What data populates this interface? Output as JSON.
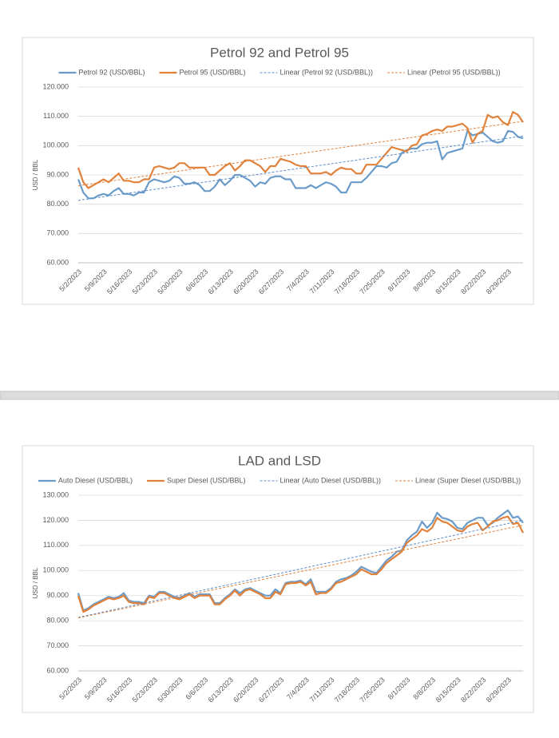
{
  "chart_data": [
    {
      "type": "line",
      "title": "Petrol 92 and Petrol 95",
      "y_label": "USD / BBL",
      "grid": true,
      "legend": "top",
      "categories": [
        "5/2/2023",
        null,
        null,
        null,
        null,
        "5/9/2023",
        null,
        null,
        null,
        null,
        "5/16/2023",
        null,
        null,
        null,
        null,
        "5/23/2023",
        null,
        null,
        null,
        null,
        "5/30/2023",
        null,
        null,
        null,
        null,
        "6/6/2023",
        null,
        null,
        null,
        null,
        "6/13/2023",
        null,
        null,
        null,
        null,
        "6/20/2023",
        null,
        null,
        null,
        null,
        "6/27/2023",
        null,
        null,
        null,
        null,
        "7/4/2023",
        null,
        null,
        null,
        null,
        "7/11/2023",
        null,
        null,
        null,
        null,
        "7/18/2023",
        null,
        null,
        null,
        null,
        "7/25/2023",
        null,
        null,
        null,
        null,
        "8/1/2023",
        null,
        null,
        null,
        null,
        "8/8/2023",
        null,
        null,
        null,
        null,
        "8/15/2023",
        null,
        null,
        null,
        null,
        "8/22/2023",
        null,
        null,
        null,
        null,
        "8/29/2023",
        null,
        null,
        null
      ],
      "ylim": [
        60,
        120
      ],
      "yticks": [
        {
          "value": 60,
          "label": "60.000"
        },
        {
          "value": 70,
          "label": "70.000"
        },
        {
          "value": 80,
          "label": "80.000"
        },
        {
          "value": 90,
          "label": "90.000"
        },
        {
          "value": 100,
          "label": "100.000"
        },
        {
          "value": 110,
          "label": "110.000"
        },
        {
          "value": 120,
          "label": "120.000"
        }
      ],
      "series": [
        {
          "name": "Petrol 92 (USD/BBL)",
          "color": "#6b9bc9",
          "style": "solid",
          "values": [
            88.5,
            84,
            82,
            82,
            83,
            83.5,
            83,
            84.5,
            85.5,
            83.5,
            83.5,
            83,
            84,
            84,
            87.5,
            88.5,
            88,
            87.5,
            88,
            89.5,
            89,
            87,
            87,
            87.5,
            86.5,
            84.5,
            84.5,
            86,
            88.5,
            86.5,
            88,
            90,
            90,
            89,
            88,
            86,
            87.5,
            87,
            89,
            89.5,
            89.5,
            88.5,
            88.5,
            85.5,
            85.5,
            85.5,
            86.5,
            85.5,
            86.5,
            87.5,
            87,
            86,
            84,
            84,
            87.5,
            87.5,
            87.5,
            89,
            91,
            93,
            93,
            92.5,
            94,
            94.5,
            97.5,
            98.5,
            99,
            99,
            100.5,
            101,
            101,
            101.5,
            95.3,
            97.5,
            98,
            98.5,
            99,
            105,
            103.5,
            104,
            104.5,
            103,
            101.5,
            101,
            101.5,
            105,
            104.7,
            103,
            102.5
          ]
        },
        {
          "name": "Petrol 95 (USD/BBL)",
          "color": "#e0823c",
          "style": "solid",
          "values": [
            92.5,
            87.5,
            85.5,
            86.5,
            87.5,
            88.5,
            87.5,
            89,
            90.5,
            88,
            88,
            87.5,
            87.5,
            88.5,
            88.5,
            92.5,
            93,
            92.5,
            92,
            92.5,
            94,
            94,
            92.5,
            92.5,
            92.5,
            92.5,
            90,
            90,
            91.5,
            93,
            94,
            91.5,
            93,
            95,
            95,
            94,
            93,
            91,
            93,
            93,
            95.5,
            95,
            94.5,
            93.5,
            93,
            93,
            90.5,
            90.5,
            90.5,
            91,
            90,
            91.5,
            92.5,
            92,
            92,
            90.5,
            90.5,
            93.5,
            93.5,
            93.5,
            95.5,
            97.5,
            99.5,
            99,
            98.5,
            98,
            100,
            100.5,
            103.5,
            104,
            105,
            105.5,
            105,
            106.5,
            106.5,
            107,
            107.5,
            106,
            101,
            104,
            105,
            110.5,
            109.5,
            110,
            108,
            107,
            111.5,
            110.5,
            108
          ]
        },
        {
          "name": "Linear (Petrol 92 (USD/BBL))",
          "color": "#5b8ec9",
          "style": "dashed",
          "values": [
            81.3,
            81.55,
            81.8,
            82.05,
            82.3,
            82.55,
            82.8,
            83.05,
            83.3,
            83.55,
            83.8,
            84.05,
            84.3,
            84.55,
            84.8,
            85.05,
            85.3,
            85.55,
            85.8,
            86.05,
            86.3,
            86.55,
            86.8,
            87.05,
            87.3,
            87.55,
            87.8,
            88.05,
            88.3,
            88.55,
            88.8,
            89.05,
            89.3,
            89.55,
            89.8,
            90.05,
            90.3,
            90.55,
            90.8,
            91.05,
            91.3,
            91.55,
            91.8,
            92.05,
            92.3,
            92.55,
            92.8,
            93.05,
            93.3,
            93.55,
            93.8,
            94.05,
            94.3,
            94.55,
            94.8,
            95.05,
            95.3,
            95.55,
            95.8,
            96.05,
            96.3,
            96.55,
            96.8,
            97.05,
            97.3,
            97.55,
            97.8,
            98.05,
            98.3,
            98.55,
            98.8,
            99.05,
            99.3,
            99.55,
            99.8,
            100.05,
            100.3,
            100.55,
            100.8,
            101.05,
            101.3,
            101.55,
            101.8,
            102.05,
            102.3,
            102.55,
            102.8,
            103.05,
            103.3
          ]
        },
        {
          "name": "Linear (Petrol 95 (USD/BBL))",
          "color": "#e0823c",
          "style": "dashed",
          "values": [
            86.3,
            86.55,
            86.8,
            87.05,
            87.3,
            87.55,
            87.8,
            88.05,
            88.3,
            88.55,
            88.8,
            89.05,
            89.3,
            89.55,
            89.8,
            90.05,
            90.3,
            90.55,
            90.8,
            91.05,
            91.3,
            91.55,
            91.8,
            92.05,
            92.3,
            92.55,
            92.8,
            93.05,
            93.3,
            93.55,
            93.8,
            94.05,
            94.3,
            94.55,
            94.8,
            95.05,
            95.3,
            95.55,
            95.8,
            96.05,
            96.3,
            96.55,
            96.8,
            97.05,
            97.3,
            97.55,
            97.8,
            98.05,
            98.3,
            98.55,
            98.8,
            99.05,
            99.3,
            99.55,
            99.8,
            100.05,
            100.3,
            100.55,
            100.8,
            101.05,
            101.3,
            101.55,
            101.8,
            102.05,
            102.3,
            102.55,
            102.8,
            103.05,
            103.3,
            103.55,
            103.8,
            104.05,
            104.3,
            104.55,
            104.8,
            105.05,
            105.3,
            105.55,
            105.8,
            106.05,
            106.3,
            106.55,
            106.8,
            107.05,
            107.3,
            107.55,
            107.8,
            108.05,
            108.3
          ]
        }
      ]
    },
    {
      "type": "line",
      "title": "LAD and LSD",
      "y_label": "USD / BBL",
      "grid": true,
      "legend": "top",
      "categories": [
        "5/2/2023",
        null,
        null,
        null,
        null,
        "5/9/2023",
        null,
        null,
        null,
        null,
        "5/16/2023",
        null,
        null,
        null,
        null,
        "5/23/2023",
        null,
        null,
        null,
        null,
        "5/30/2023",
        null,
        null,
        null,
        null,
        "6/6/2023",
        null,
        null,
        null,
        null,
        "6/13/2023",
        null,
        null,
        null,
        null,
        "6/20/2023",
        null,
        null,
        null,
        null,
        "6/27/2023",
        null,
        null,
        null,
        null,
        "7/4/2023",
        null,
        null,
        null,
        null,
        "7/11/2023",
        null,
        null,
        null,
        null,
        "7/18/2023",
        null,
        null,
        null,
        null,
        "7/25/2023",
        null,
        null,
        null,
        null,
        "8/1/2023",
        null,
        null,
        null,
        null,
        "8/8/2023",
        null,
        null,
        null,
        null,
        "8/15/2023",
        null,
        null,
        null,
        null,
        "8/22/2023",
        null,
        null,
        null,
        null,
        "8/29/2023",
        null,
        null,
        null
      ],
      "ylim": [
        60,
        130
      ],
      "yticks": [
        {
          "value": 60,
          "label": "60.000"
        },
        {
          "value": 70,
          "label": "70.000"
        },
        {
          "value": 80,
          "label": "80.000"
        },
        {
          "value": 90,
          "label": "90.000"
        },
        {
          "value": 100,
          "label": "100.000"
        },
        {
          "value": 110,
          "label": "110.000"
        },
        {
          "value": 120,
          "label": "120.000"
        },
        {
          "value": 130,
          "label": "130.000"
        }
      ],
      "series": [
        {
          "name": "Auto Diesel (USD/BBL)",
          "color": "#6b9bc9",
          "style": "solid",
          "values": [
            91,
            84,
            85,
            86.5,
            87.5,
            88.5,
            89.5,
            89,
            89.5,
            91,
            88,
            87.5,
            87.5,
            87,
            90,
            89.5,
            91.5,
            91.5,
            90.5,
            89.5,
            89,
            90,
            91,
            89.5,
            90.5,
            90.5,
            90.5,
            87,
            87,
            89,
            90.5,
            92.5,
            91,
            92.5,
            93,
            92,
            91,
            90,
            90,
            92.5,
            91,
            95,
            95.5,
            95.5,
            96,
            94.5,
            96.5,
            91.5,
            91.5,
            91.5,
            93,
            95.5,
            96.5,
            97,
            98,
            99.5,
            101.5,
            100.5,
            99.5,
            99,
            101.5,
            104,
            105.5,
            107.5,
            108,
            112,
            114,
            115.5,
            119.5,
            117,
            119,
            123,
            121,
            120.5,
            119.5,
            117,
            116.5,
            119,
            120,
            121,
            121,
            118,
            119,
            121,
            122.5,
            124,
            121,
            121.5,
            119
          ]
        },
        {
          "name": "Super Diesel (USD/BBL)",
          "color": "#e0823c",
          "style": "solid",
          "values": [
            90,
            83.5,
            84.5,
            86,
            87,
            88,
            89,
            88.5,
            89,
            90,
            87.5,
            87,
            87,
            86.5,
            89.5,
            89,
            91,
            91,
            90,
            89,
            88.5,
            89.5,
            90.5,
            89,
            90,
            90,
            90,
            86.5,
            86.5,
            88.5,
            90,
            92,
            90,
            92,
            92.5,
            91.5,
            90.5,
            89,
            89,
            91.5,
            90.5,
            94.5,
            95,
            95,
            95.5,
            94,
            95.5,
            90.5,
            91,
            91,
            92.5,
            95,
            95.5,
            96.5,
            97.5,
            98.5,
            100.5,
            99.5,
            98.5,
            98.5,
            100.5,
            103,
            104.5,
            106,
            107.5,
            111,
            112.5,
            114,
            116.5,
            115.5,
            117,
            121,
            119.5,
            119,
            117.5,
            116,
            115.5,
            117.5,
            118.5,
            119,
            116,
            117.5,
            119.5,
            120,
            121,
            121.5,
            118.5,
            119,
            115
          ]
        },
        {
          "name": "Linear (Auto Diesel (USD/BBL))",
          "color": "#5b8ec9",
          "style": "dashed",
          "values": [
            81.3,
            81.74,
            82.18,
            82.62,
            83.06,
            83.5,
            83.94,
            84.38,
            84.82,
            85.26,
            85.7,
            86.14,
            86.58,
            87.02,
            87.46,
            87.9,
            88.34,
            88.78,
            89.22,
            89.66,
            90.1,
            90.54,
            90.98,
            91.42,
            91.86,
            92.3,
            92.74,
            93.18,
            93.62,
            94.06,
            94.5,
            94.94,
            95.38,
            95.82,
            96.26,
            96.7,
            97.14,
            97.58,
            98.02,
            98.46,
            98.9,
            99.34,
            99.78,
            100.22,
            100.66,
            101.1,
            101.54,
            101.98,
            102.42,
            102.86,
            103.3,
            103.74,
            104.18,
            104.62,
            105.06,
            105.5,
            105.94,
            106.38,
            106.82,
            107.26,
            107.7,
            108.14,
            108.58,
            109.02,
            109.46,
            109.9,
            110.34,
            110.78,
            111.22,
            111.66,
            112.1,
            112.54,
            112.98,
            113.42,
            113.86,
            114.3,
            114.74,
            115.18,
            115.62,
            116.06,
            116.5,
            116.94,
            117.38,
            117.82,
            118.26,
            118.7,
            119.14,
            119.58,
            120.02
          ]
        },
        {
          "name": "Linear (Super Diesel (USD/BBL))",
          "color": "#e0823c",
          "style": "dashed",
          "values": [
            81.1,
            81.52,
            81.94,
            82.36,
            82.78,
            83.2,
            83.62,
            84.04,
            84.46,
            84.88,
            85.3,
            85.72,
            86.14,
            86.56,
            86.98,
            87.4,
            87.82,
            88.24,
            88.66,
            89.08,
            89.5,
            89.92,
            90.34,
            90.76,
            91.18,
            91.6,
            92.02,
            92.44,
            92.86,
            93.28,
            93.7,
            94.12,
            94.54,
            94.96,
            95.38,
            95.8,
            96.22,
            96.64,
            97.06,
            97.48,
            97.9,
            98.32,
            98.74,
            99.16,
            99.58,
            100,
            100.42,
            100.84,
            101.26,
            101.68,
            102.1,
            102.52,
            102.94,
            103.36,
            103.78,
            104.2,
            104.62,
            105.04,
            105.46,
            105.88,
            106.3,
            106.72,
            107.14,
            107.56,
            107.98,
            108.4,
            108.82,
            109.24,
            109.66,
            110.08,
            110.5,
            110.92,
            111.34,
            111.76,
            112.18,
            112.6,
            113.02,
            113.44,
            113.86,
            114.28,
            114.7,
            115.12,
            115.54,
            115.96,
            116.38,
            116.8,
            117.22,
            117.64,
            118.06
          ]
        }
      ]
    }
  ]
}
